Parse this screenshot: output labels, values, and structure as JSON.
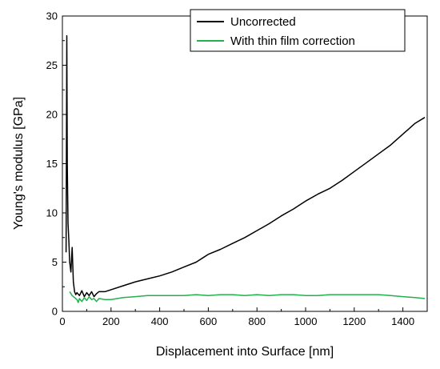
{
  "chart_data": {
    "type": "line",
    "xlabel": "Displacement into Surface [nm]",
    "ylabel": "Young's modulus [GPa]",
    "xlim": [
      0,
      1500
    ],
    "ylim": [
      0,
      30
    ],
    "x_ticks": [
      0,
      200,
      400,
      600,
      800,
      1000,
      1200,
      1400
    ],
    "y_ticks": [
      0,
      5,
      10,
      15,
      20,
      25,
      30
    ],
    "grid": false,
    "legend_position": "top-right",
    "series": [
      {
        "name": "Uncorrected",
        "color": "#000000",
        "x": [
          15,
          18,
          20,
          23,
          26,
          30,
          35,
          40,
          45,
          50,
          55,
          60,
          70,
          80,
          90,
          100,
          110,
          120,
          130,
          140,
          150,
          175,
          200,
          250,
          300,
          350,
          400,
          450,
          500,
          550,
          600,
          650,
          700,
          750,
          800,
          850,
          900,
          950,
          1000,
          1050,
          1100,
          1150,
          1200,
          1250,
          1300,
          1350,
          1400,
          1450,
          1490
        ],
        "y": [
          6,
          28,
          15,
          9,
          7.5,
          5,
          4,
          6.5,
          3,
          2,
          1.7,
          1.9,
          1.6,
          2.1,
          1.5,
          1.9,
          1.6,
          2.0,
          1.5,
          1.8,
          2.0,
          2.0,
          2.2,
          2.6,
          3.0,
          3.3,
          3.6,
          4.0,
          4.5,
          5.0,
          5.8,
          6.3,
          6.9,
          7.5,
          8.2,
          8.9,
          9.7,
          10.4,
          11.2,
          11.9,
          12.5,
          13.3,
          14.2,
          15.1,
          16.0,
          16.9,
          18.0,
          19.1,
          19.7
        ]
      },
      {
        "name": "With thin film correction",
        "color": "#22b14c",
        "x": [
          30,
          40,
          50,
          60,
          65,
          70,
          80,
          90,
          100,
          110,
          120,
          130,
          140,
          150,
          175,
          200,
          250,
          300,
          350,
          400,
          450,
          500,
          550,
          600,
          650,
          700,
          750,
          800,
          850,
          900,
          950,
          1000,
          1050,
          1100,
          1150,
          1200,
          1250,
          1300,
          1350,
          1400,
          1450,
          1490
        ],
        "y": [
          2.0,
          1.6,
          1.4,
          1.2,
          0.9,
          1.3,
          1.0,
          1.4,
          1.1,
          1.5,
          1.2,
          1.3,
          1.0,
          1.3,
          1.2,
          1.2,
          1.4,
          1.5,
          1.6,
          1.6,
          1.6,
          1.6,
          1.7,
          1.6,
          1.7,
          1.7,
          1.6,
          1.7,
          1.6,
          1.7,
          1.7,
          1.6,
          1.6,
          1.7,
          1.7,
          1.7,
          1.7,
          1.7,
          1.6,
          1.5,
          1.4,
          1.3
        ]
      }
    ]
  }
}
